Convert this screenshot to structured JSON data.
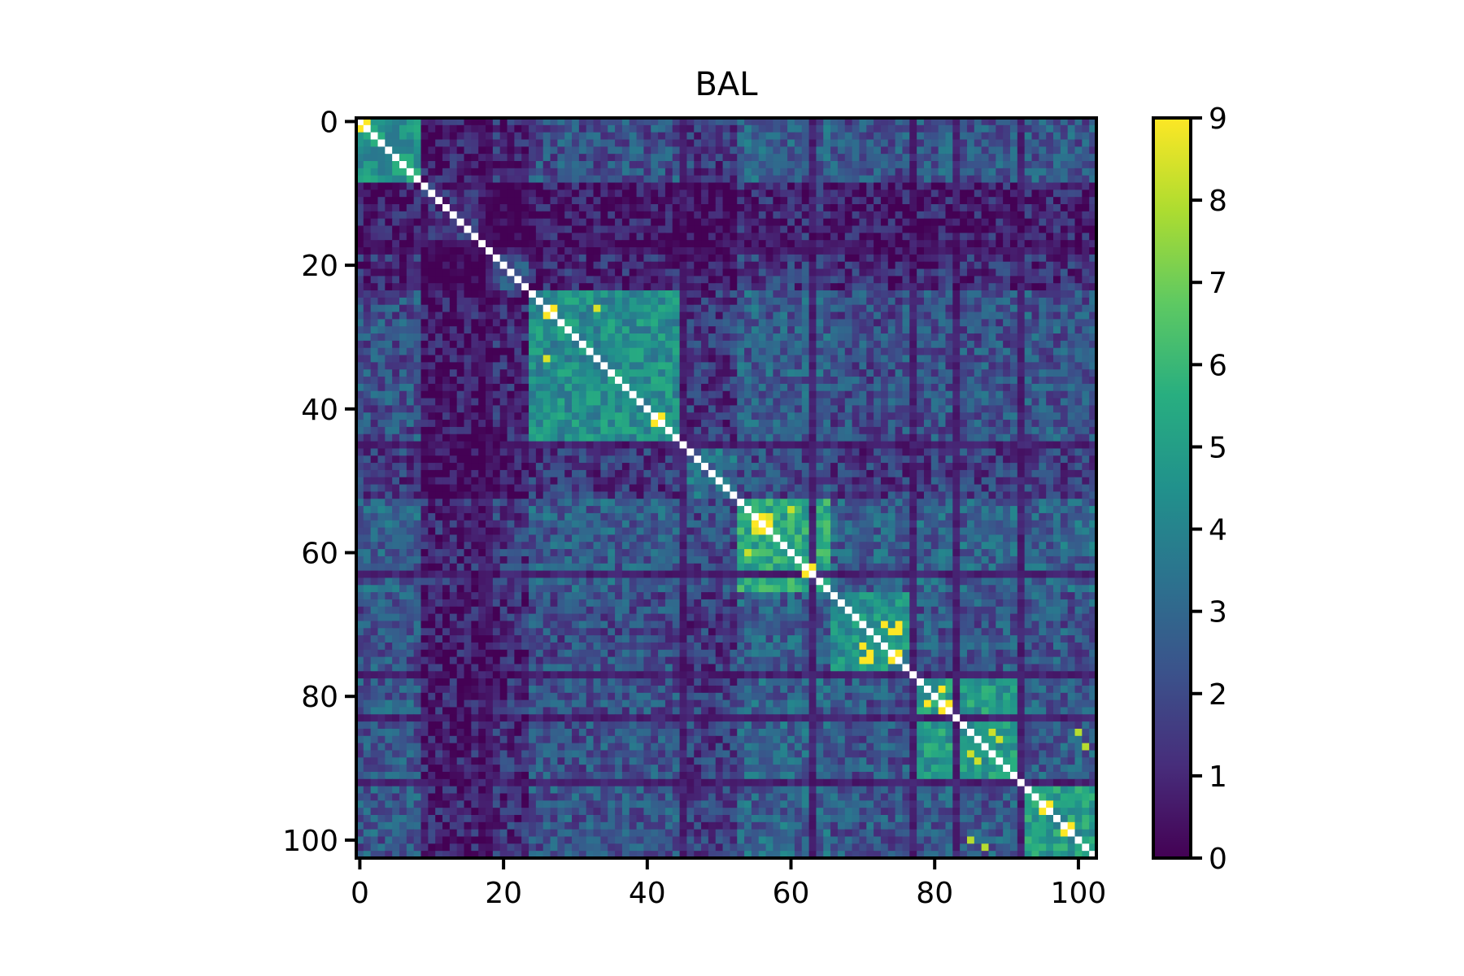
{
  "chart_data": {
    "type": "heatmap",
    "title": "BAL",
    "xlabel": "",
    "ylabel": "",
    "size": 103,
    "x_ticks": [
      0,
      20,
      40,
      60,
      80,
      100
    ],
    "y_ticks": [
      0,
      20,
      40,
      60,
      80,
      100
    ],
    "y_axis_inverted": true,
    "colormap": "viridis",
    "colorbar": {
      "min": 0,
      "max": 9,
      "ticks": [
        0,
        1,
        2,
        3,
        4,
        5,
        6,
        7,
        8,
        9
      ]
    },
    "diagonal_color": "#ffffff",
    "blocks": [
      {
        "range": [
          0,
          9
        ],
        "level": 4.6
      },
      {
        "range": [
          9,
          18
        ],
        "level": 1.3
      },
      {
        "range": [
          18,
          24
        ],
        "level": 2.2
      },
      {
        "range": [
          24,
          45
        ],
        "level": 4.4
      },
      {
        "range": [
          45,
          53
        ],
        "level": 3.2
      },
      {
        "range": [
          53,
          66
        ],
        "level": 5.4
      },
      {
        "range": [
          66,
          78
        ],
        "level": 4.5
      },
      {
        "range": [
          78,
          93
        ],
        "level": 4.8
      },
      {
        "range": [
          93,
          103
        ],
        "level": 4.9
      }
    ],
    "dark_rows": [
      17,
      45,
      63,
      77,
      83,
      92
    ],
    "dark_cols": [
      18,
      45,
      63,
      77,
      83,
      92
    ],
    "highlights": [
      {
        "i": 0,
        "j": 1,
        "value": 9
      },
      {
        "i": 26,
        "j": 27,
        "value": 9
      },
      {
        "i": 26,
        "j": 33,
        "value": 8.5
      },
      {
        "i": 41,
        "j": 42,
        "value": 9
      },
      {
        "i": 55,
        "j": 56,
        "value": 9
      },
      {
        "i": 55,
        "j": 57,
        "value": 8.6
      },
      {
        "i": 56,
        "j": 57,
        "value": 9
      },
      {
        "i": 54,
        "j": 60,
        "value": 8.2
      },
      {
        "i": 62,
        "j": 63,
        "value": 9
      },
      {
        "i": 70,
        "j": 75,
        "value": 9
      },
      {
        "i": 71,
        "j": 74,
        "value": 9
      },
      {
        "i": 73,
        "j": 70,
        "value": 9
      },
      {
        "i": 75,
        "j": 71,
        "value": 9
      },
      {
        "i": 75,
        "j": 74,
        "value": 9
      },
      {
        "i": 79,
        "j": 81,
        "value": 9
      },
      {
        "i": 81,
        "j": 82,
        "value": 9
      },
      {
        "i": 85,
        "j": 88,
        "value": 8.3
      },
      {
        "i": 86,
        "j": 89,
        "value": 8.3
      },
      {
        "i": 95,
        "j": 96,
        "value": 9
      },
      {
        "i": 98,
        "j": 99,
        "value": 9
      },
      {
        "i": 85,
        "j": 100,
        "value": 8
      },
      {
        "i": 87,
        "j": 101,
        "value": 8
      }
    ]
  }
}
